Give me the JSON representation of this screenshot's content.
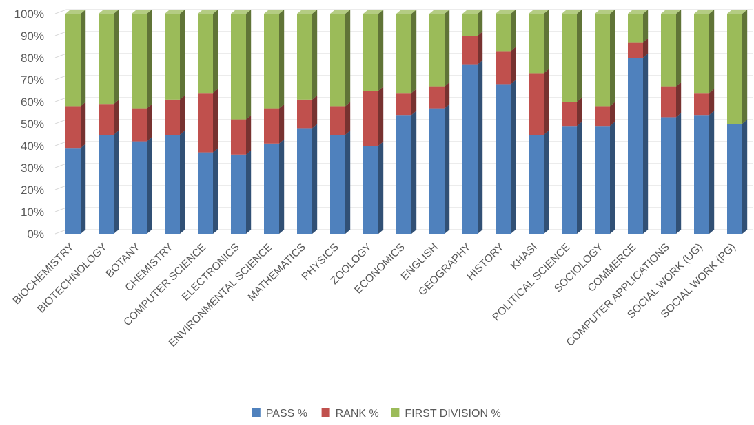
{
  "chart_data": {
    "type": "bar",
    "stacking": "percent",
    "style": "3d-stacked-column",
    "categories": [
      "BIOCHEMISTRY",
      "BIOTECHNOLOGY",
      "BOTANY",
      "CHEMISTRY",
      "COMPUTER SCIENCE",
      "ELECTRONICS",
      "ENVIRONMENTAL SCIENCE",
      "MATHEMATICS",
      "PHYSICS",
      "ZOOLOGY",
      "ECONOMICS",
      "ENGLISH",
      "GEOGRAPHY",
      "HISTORY",
      "KHASI",
      "POLITICAL SCIENCE",
      "SOCIOLOGY",
      "COMMERCE",
      "COMPUTER APPLICATIONS",
      "SOCIAL WORK (UG)",
      "SOCIAL WORK (PG)"
    ],
    "series": [
      {
        "name": "PASS %",
        "color": "#4f81bd",
        "values": [
          39,
          45,
          42,
          45,
          37,
          36,
          41,
          48,
          45,
          40,
          54,
          57,
          77,
          68,
          45,
          49,
          49,
          80,
          53,
          54,
          50
        ]
      },
      {
        "name": "RANK %",
        "color": "#c0504d",
        "values": [
          19,
          14,
          15,
          16,
          27,
          16,
          16,
          13,
          13,
          25,
          10,
          10,
          13,
          15,
          28,
          11,
          9,
          7,
          14,
          10,
          0
        ]
      },
      {
        "name": "FIRST DIVISION %",
        "color": "#9bbb59",
        "values": [
          42,
          41,
          43,
          39,
          36,
          48,
          43,
          39,
          42,
          35,
          36,
          33,
          10,
          17,
          27,
          40,
          42,
          13,
          33,
          36,
          50
        ]
      }
    ],
    "y_ticks": [
      "0%",
      "10%",
      "20%",
      "30%",
      "40%",
      "50%",
      "60%",
      "70%",
      "80%",
      "90%",
      "100%"
    ],
    "ylim": [
      0,
      100
    ],
    "grid": true,
    "legend": "bottom-center",
    "title": "",
    "xlabel": "",
    "ylabel": ""
  }
}
